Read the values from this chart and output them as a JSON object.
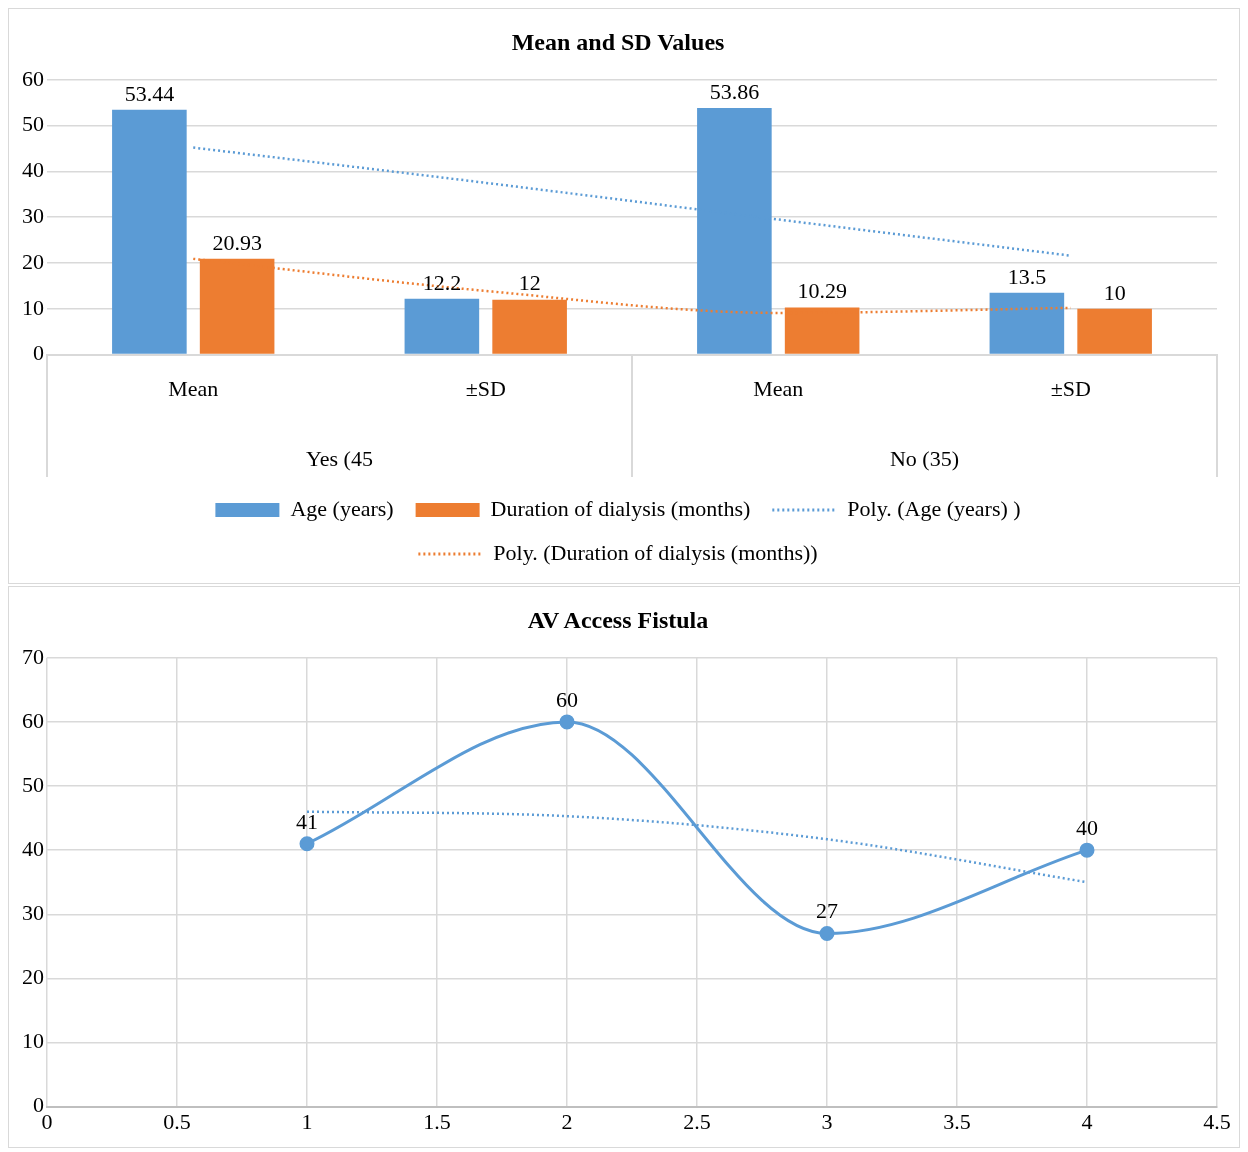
{
  "chart_data": [
    {
      "type": "bar",
      "title": "Mean and SD Values",
      "categories": [
        "Mean",
        "±SD",
        "Mean",
        "±SD"
      ],
      "annotations": [
        "Yes (45",
        "No (35)"
      ],
      "series": [
        {
          "name": "Age (years)",
          "color": "#5b9bd5",
          "values": [
            53.44,
            12.2,
            53.86,
            13.5
          ],
          "value_labels": [
            "53.44",
            "12.2",
            "53.86",
            "13.5"
          ]
        },
        {
          "name": "Duration of dialysis (months)",
          "color": "#ed7d31",
          "values": [
            20.93,
            12,
            10.29,
            10
          ],
          "value_labels": [
            "20.93",
            "12",
            "10.29",
            "10"
          ]
        },
        {
          "name": "Poly. (Age (years) )",
          "type": "line",
          "line_style": "dotted",
          "color": "#5b9bd5",
          "values": [
            45.2,
            37.5,
            29.5,
            21.6
          ]
        },
        {
          "name": "Poly. (Duration of dialysis (months))",
          "type": "line",
          "line_style": "dotted",
          "color": "#ed7d31",
          "values": [
            20.9,
            13.9,
            9.1,
            10.2
          ]
        }
      ],
      "ylim": [
        0,
        60
      ],
      "yticks": [
        0,
        10,
        20,
        30,
        40,
        50,
        60
      ],
      "grid": "y",
      "legend": "bottom"
    },
    {
      "type": "line",
      "title": "AV Access Fistula",
      "x": [
        1,
        2,
        3,
        4
      ],
      "series": [
        {
          "color": "#5b9bd5",
          "values": [
            41,
            60,
            27,
            40
          ],
          "marker": "circle",
          "value_labels": [
            "41",
            "60",
            "27",
            "40"
          ]
        },
        {
          "color": "#5b9bd5",
          "line_style": "dotted",
          "values": [
            46,
            45.3,
            41.7,
            35
          ]
        }
      ],
      "xlim": [
        0,
        4.5
      ],
      "xticks": [
        0,
        0.5,
        1,
        1.5,
        2,
        2.5,
        3,
        3.5,
        4,
        4.5
      ],
      "ylim": [
        0,
        70
      ],
      "yticks": [
        0,
        10,
        20,
        30,
        40,
        50,
        60,
        70
      ],
      "grid": true
    }
  ]
}
